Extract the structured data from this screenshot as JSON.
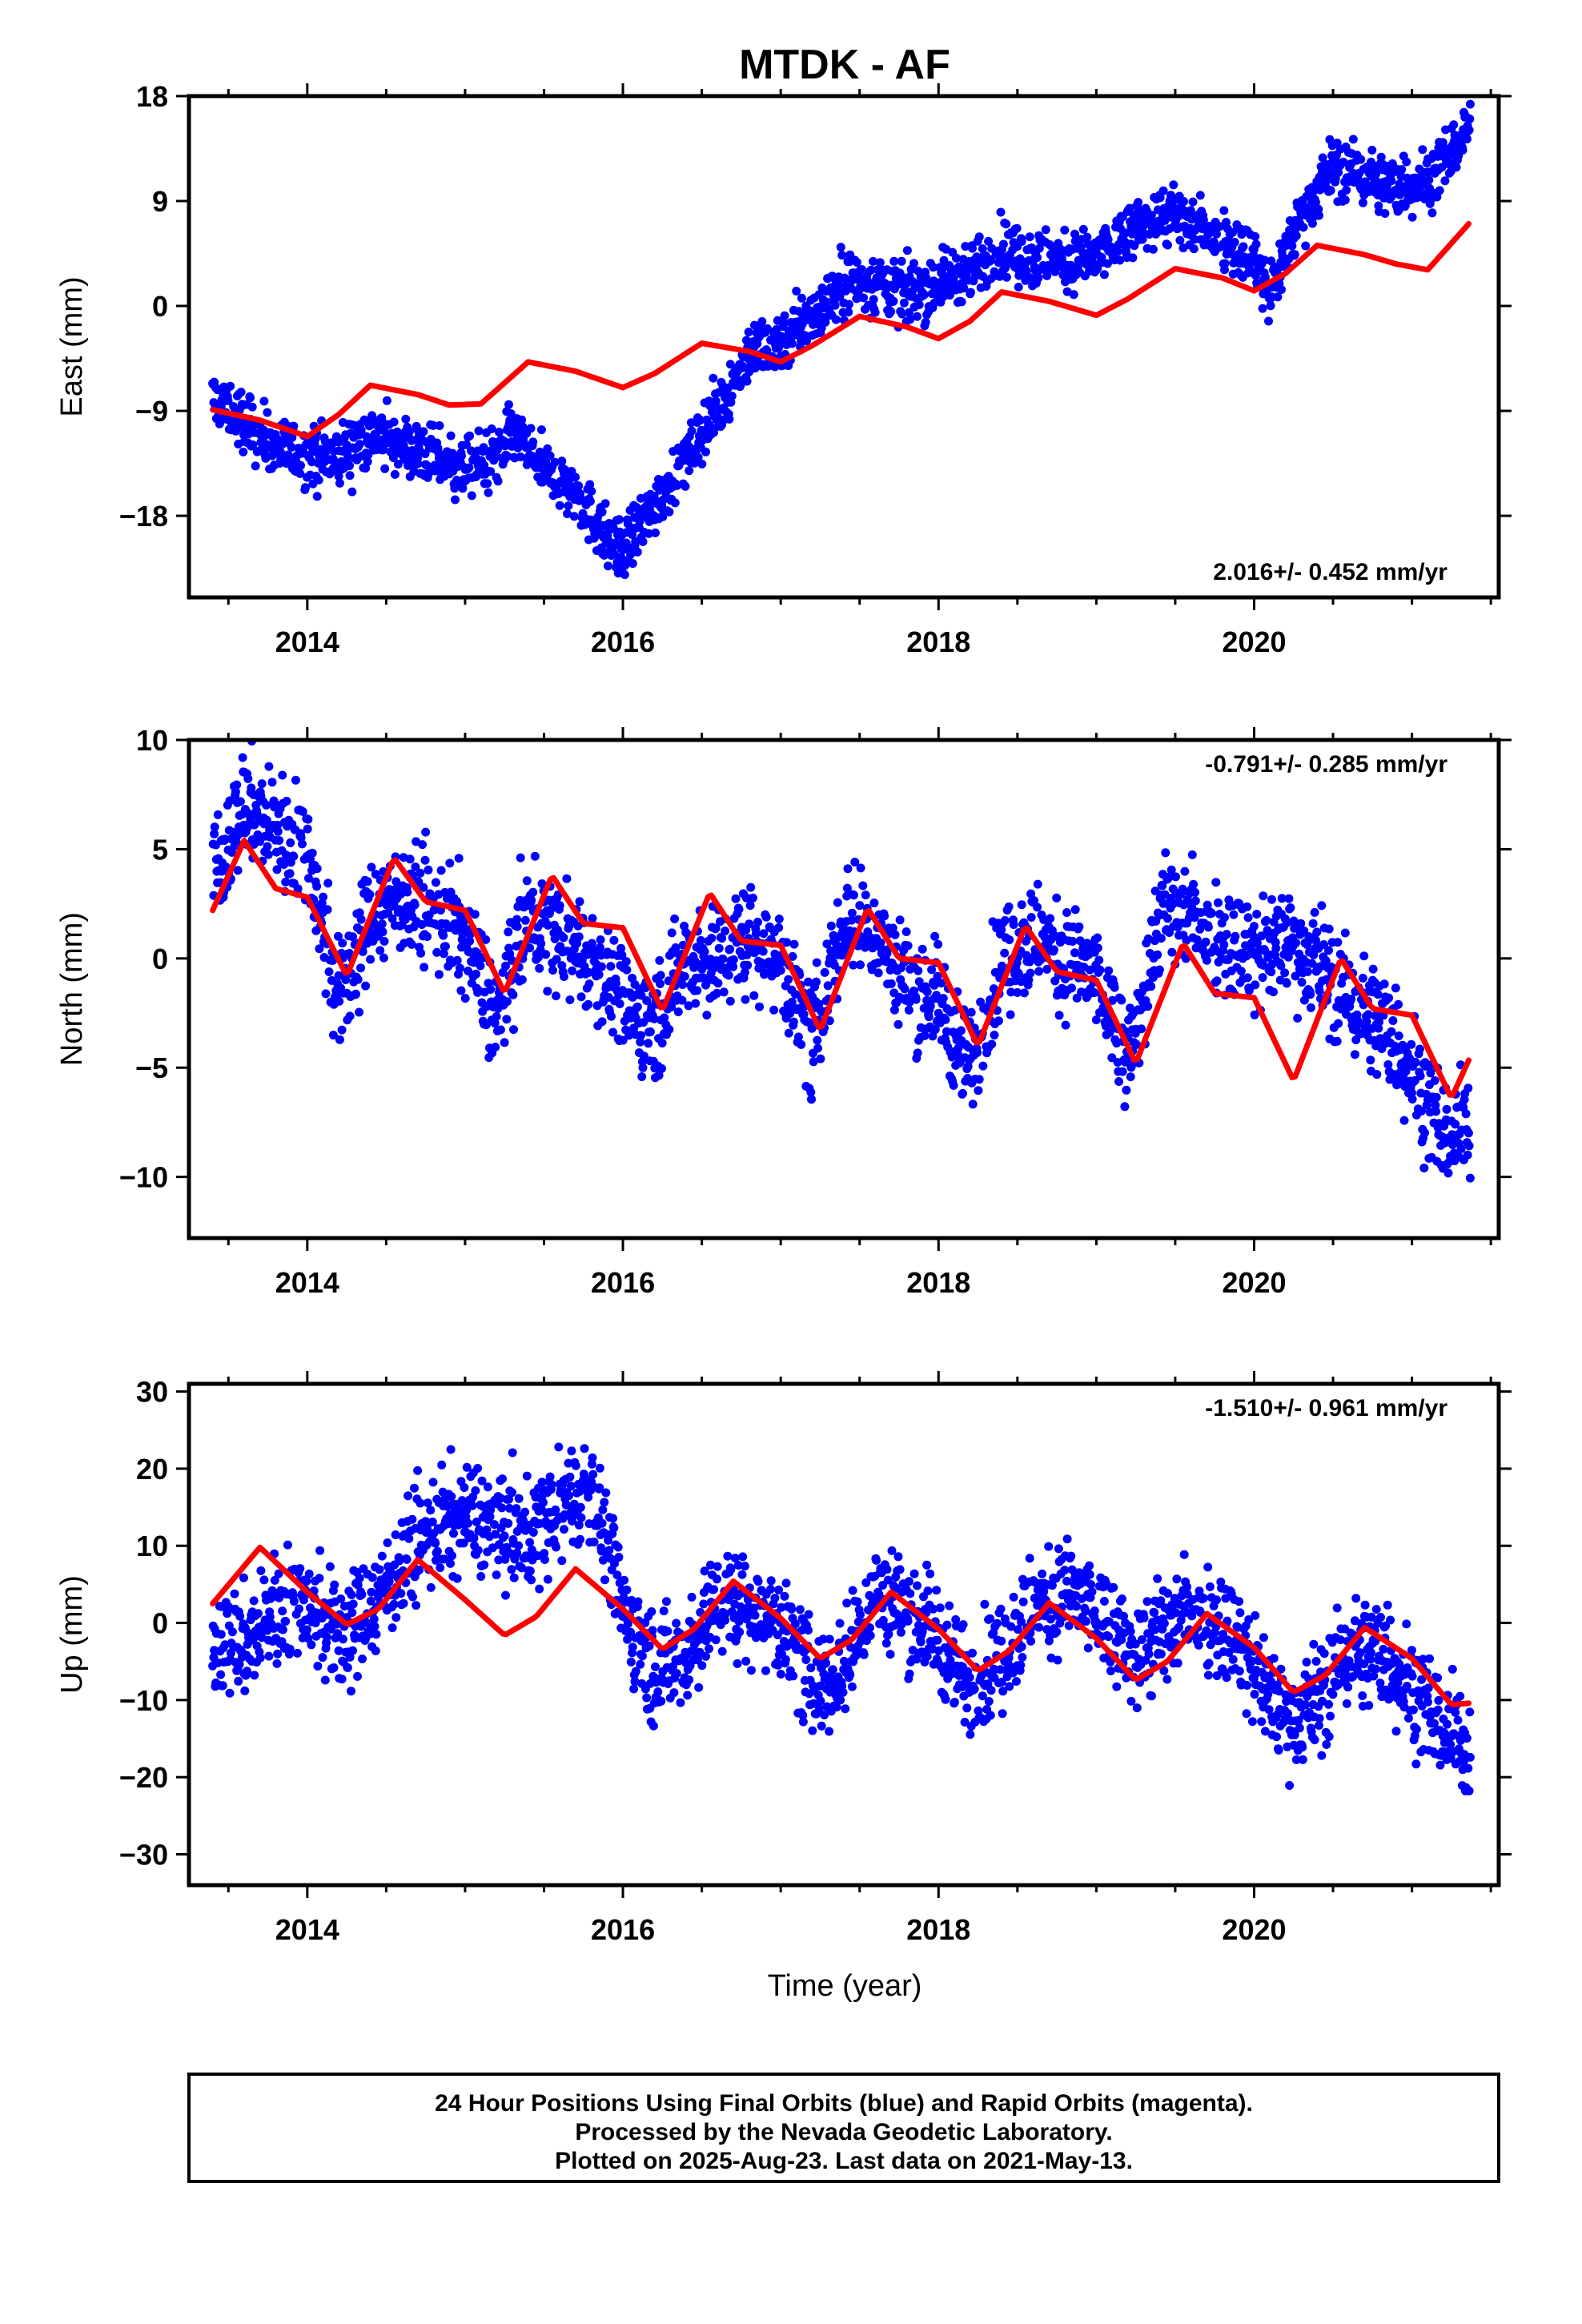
{
  "title": "MTDK - AF",
  "xlabel": "Time (year)",
  "footer": [
    "24 Hour Positions Using Final Orbits (blue) and Rapid Orbits (magenta).",
    "Processed by the Nevada Geodetic Laboratory.",
    "Plotted on 2025-Aug-23. Last data on 2021-May-13."
  ],
  "colors": {
    "data": "#0000ff",
    "model": "#ff0000",
    "frame": "#000000"
  },
  "chart_data": [
    {
      "type": "scatter",
      "ylabel": "East (mm)",
      "rate": "2.016+/- 0.452 mm/yr",
      "rate_position": "bottom-right",
      "xlim": [
        2013.25,
        2021.55
      ],
      "ylim": [
        -25,
        18
      ],
      "xticks": [
        2014,
        2016,
        2018,
        2020
      ],
      "xtick_labels": [
        "2014",
        "2016",
        "2018",
        "2020"
      ],
      "yticks": [
        18,
        9,
        0,
        -9,
        -18
      ],
      "ytick_labels": [
        "18",
        "9",
        "0",
        "−9",
        "−18"
      ],
      "series": [
        {
          "kind": "points",
          "color": "#0000ff",
          "x": [
            2013.4,
            2013.6,
            2013.8,
            2014.0,
            2014.2,
            2014.4,
            2014.6,
            2014.8,
            2015.0,
            2015.2,
            2015.3,
            2015.5,
            2015.7,
            2015.9,
            2016.0,
            2016.2,
            2016.4,
            2016.6,
            2016.8,
            2017.0,
            2017.2,
            2017.4,
            2017.6,
            2017.8,
            2018.0,
            2018.2,
            2018.4,
            2018.6,
            2018.8,
            2019.0,
            2019.2,
            2019.4,
            2019.6,
            2019.8,
            2020.0,
            2020.1,
            2020.3,
            2020.5,
            2020.7,
            2020.9,
            2021.1,
            2021.3,
            2021.37
          ],
          "y": [
            -8,
            -10,
            -12,
            -13,
            -13,
            -11,
            -12,
            -13,
            -14,
            -13,
            -11,
            -14,
            -16,
            -20,
            -21,
            -17,
            -13,
            -9,
            -4,
            -3,
            -1,
            2,
            2,
            1,
            2,
            3,
            5,
            4,
            4,
            4,
            6,
            8,
            7,
            6,
            4,
            1,
            8,
            12,
            11,
            10,
            11,
            14,
            16
          ]
        },
        {
          "kind": "line",
          "color": "#ff0000",
          "x": [
            2013.4,
            2013.7,
            2014.0,
            2014.2,
            2014.4,
            2014.7,
            2014.9,
            2015.1,
            2015.4,
            2015.7,
            2016.0,
            2016.2,
            2016.5,
            2016.8,
            2017.0,
            2017.2,
            2017.5,
            2017.8,
            2018.0,
            2018.2,
            2018.4,
            2018.7,
            2019.0,
            2019.2,
            2019.5,
            2019.8,
            2020.0,
            2020.2,
            2020.4,
            2020.7,
            2020.9,
            2021.1,
            2021.37
          ],
          "y": [
            -8.9,
            -9.8,
            -11.2,
            -9.3,
            -6.8,
            -7.6,
            -8.5,
            -8.4,
            -4.8,
            -5.6,
            -7.0,
            -5.8,
            -3.2,
            -3.9,
            -4.8,
            -3.4,
            -0.9,
            -1.8,
            -2.8,
            -1.3,
            1.2,
            0.4,
            -0.8,
            0.6,
            3.2,
            2.4,
            1.3,
            2.8,
            5.2,
            4.4,
            3.6,
            3.1,
            7.2
          ]
        }
      ]
    },
    {
      "type": "scatter",
      "ylabel": "North (mm)",
      "rate": "-0.791+/- 0.285 mm/yr",
      "rate_position": "top-right",
      "xlim": [
        2013.25,
        2021.55
      ],
      "ylim": [
        -12.8,
        10
      ],
      "xticks": [
        2014,
        2016,
        2018,
        2020
      ],
      "xtick_labels": [
        "2014",
        "2016",
        "2018",
        "2020"
      ],
      "yticks": [
        10,
        5,
        0,
        -5,
        -10
      ],
      "ytick_labels": [
        "10",
        "5",
        "0",
        "−5",
        "−10"
      ],
      "series": [
        {
          "kind": "points",
          "color": "#0000ff",
          "x": [
            2013.4,
            2013.6,
            2013.8,
            2014.0,
            2014.2,
            2014.4,
            2014.6,
            2014.8,
            2015.0,
            2015.2,
            2015.4,
            2015.6,
            2015.8,
            2016.0,
            2016.2,
            2016.4,
            2016.6,
            2016.8,
            2017.0,
            2017.2,
            2017.4,
            2017.6,
            2017.8,
            2018.0,
            2018.2,
            2018.4,
            2018.6,
            2018.8,
            2019.0,
            2019.2,
            2019.4,
            2019.6,
            2019.8,
            2020.0,
            2020.2,
            2020.4,
            2020.6,
            2020.8,
            2021.0,
            2021.2,
            2021.37
          ],
          "y": [
            4,
            7,
            6,
            5,
            -2,
            2,
            3,
            2,
            1,
            -3,
            2,
            1,
            0,
            -2,
            -3,
            0,
            0,
            1,
            0,
            -4,
            2,
            1,
            -1,
            -2,
            -5,
            0,
            1,
            0,
            -1,
            -5,
            2,
            2,
            1,
            0,
            1,
            0,
            -2,
            -3,
            -5,
            -8,
            -8
          ]
        },
        {
          "kind": "line",
          "color": "#ff0000",
          "x": [
            2013.4,
            2013.6,
            2013.8,
            2014.0,
            2014.25,
            2014.55,
            2014.75,
            2015.0,
            2015.25,
            2015.55,
            2015.75,
            2016.0,
            2016.25,
            2016.55,
            2016.75,
            2017.0,
            2017.25,
            2017.55,
            2017.75,
            2018.0,
            2018.25,
            2018.55,
            2018.75,
            2019.0,
            2019.25,
            2019.55,
            2019.75,
            2020.0,
            2020.25,
            2020.55,
            2020.75,
            2021.0,
            2021.25,
            2021.37
          ],
          "y": [
            2.2,
            5.4,
            3.2,
            2.8,
            -0.8,
            4.6,
            2.6,
            2.2,
            -1.6,
            3.8,
            1.6,
            1.4,
            -2.4,
            3.0,
            0.8,
            0.6,
            -3.3,
            2.3,
            0.0,
            -0.2,
            -4.0,
            1.5,
            -0.6,
            -1.0,
            -4.8,
            0.7,
            -1.6,
            -1.8,
            -5.6,
            0.0,
            -2.3,
            -2.6,
            -6.4,
            -4.5
          ]
        }
      ]
    },
    {
      "type": "scatter",
      "ylabel": "Up (mm)",
      "rate": "-1.510+/- 0.961 mm/yr",
      "rate_position": "top-right",
      "xlim": [
        2013.25,
        2021.55
      ],
      "ylim": [
        -34,
        31
      ],
      "xticks": [
        2014,
        2016,
        2018,
        2020
      ],
      "xtick_labels": [
        "2014",
        "2016",
        "2018",
        "2020"
      ],
      "yticks": [
        30,
        20,
        10,
        0,
        -10,
        -20,
        -30
      ],
      "ytick_labels": [
        "30",
        "20",
        "10",
        "0",
        "−10",
        "−20",
        "−30"
      ],
      "series": [
        {
          "kind": "points",
          "color": "#0000ff",
          "x": [
            2013.4,
            2013.6,
            2013.8,
            2014.0,
            2014.2,
            2014.4,
            2014.6,
            2014.8,
            2015.0,
            2015.2,
            2015.4,
            2015.6,
            2015.8,
            2016.0,
            2016.2,
            2016.4,
            2016.6,
            2016.8,
            2017.0,
            2017.2,
            2017.4,
            2017.6,
            2017.8,
            2018.0,
            2018.2,
            2018.4,
            2018.6,
            2018.8,
            2019.0,
            2019.2,
            2019.4,
            2019.6,
            2019.8,
            2020.0,
            2020.2,
            2020.4,
            2020.6,
            2020.8,
            2021.0,
            2021.2,
            2021.37
          ],
          "y": [
            -2,
            -3,
            2,
            3,
            -2,
            2,
            8,
            12,
            14,
            12,
            11,
            15,
            18,
            2,
            -6,
            -4,
            3,
            2,
            0,
            -8,
            -6,
            4,
            2,
            -2,
            -8,
            -4,
            2,
            4,
            1,
            -4,
            -2,
            2,
            0,
            -6,
            -12,
            -10,
            -4,
            -4,
            -8,
            -14,
            -16
          ]
        },
        {
          "kind": "line",
          "color": "#ff0000",
          "x": [
            2013.4,
            2013.7,
            2014.0,
            2014.25,
            2014.45,
            2014.7,
            2015.0,
            2015.25,
            2015.45,
            2015.7,
            2016.0,
            2016.25,
            2016.45,
            2016.7,
            2017.0,
            2017.25,
            2017.45,
            2017.7,
            2018.0,
            2018.25,
            2018.45,
            2018.7,
            2019.0,
            2019.25,
            2019.45,
            2019.7,
            2020.0,
            2020.25,
            2020.45,
            2020.7,
            2021.0,
            2021.25,
            2021.37
          ],
          "y": [
            2.5,
            9.8,
            4.0,
            -0.2,
            1.8,
            8.2,
            3.0,
            -1.6,
            0.8,
            7.0,
            1.8,
            -3.4,
            -0.8,
            5.4,
            0.6,
            -4.6,
            -2.2,
            4.0,
            -0.8,
            -6.2,
            -3.6,
            2.6,
            -2.0,
            -7.4,
            -5.0,
            1.2,
            -3.2,
            -9.0,
            -6.8,
            -0.6,
            -4.6,
            -10.6,
            -10.4
          ]
        }
      ]
    }
  ]
}
